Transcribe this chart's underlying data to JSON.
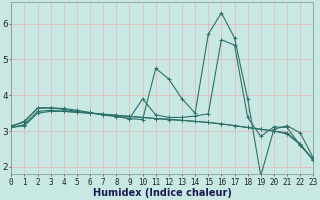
{
  "xlabel": "Humidex (Indice chaleur)",
  "bg_color": "#c8e8e4",
  "grid_color": "#e8b4b4",
  "line_color": "#2d7068",
  "x": [
    0,
    1,
    2,
    3,
    4,
    5,
    6,
    7,
    8,
    9,
    10,
    11,
    12,
    13,
    14,
    15,
    16,
    17,
    18,
    19,
    20,
    21,
    22,
    23
  ],
  "line1": [
    3.15,
    3.25,
    3.65,
    3.65,
    3.63,
    3.58,
    3.52,
    3.45,
    3.4,
    3.35,
    3.32,
    4.75,
    4.45,
    3.9,
    3.5,
    5.7,
    6.3,
    5.6,
    3.9,
    1.75,
    3.05,
    3.15,
    2.95,
    2.25
  ],
  "line2": [
    3.12,
    3.28,
    3.63,
    3.65,
    3.6,
    3.55,
    3.5,
    3.46,
    3.42,
    3.35,
    3.9,
    3.45,
    3.38,
    3.38,
    3.42,
    3.48,
    5.55,
    5.4,
    3.38,
    2.85,
    3.12,
    3.1,
    2.6,
    2.22
  ],
  "line3": [
    3.1,
    3.18,
    3.55,
    3.58,
    3.55,
    3.53,
    3.5,
    3.47,
    3.44,
    3.41,
    3.38,
    3.35,
    3.33,
    3.3,
    3.27,
    3.24,
    3.2,
    3.15,
    3.1,
    3.05,
    3.0,
    2.95,
    2.65,
    2.18
  ],
  "line4": [
    3.1,
    3.15,
    3.5,
    3.55,
    3.55,
    3.52,
    3.5,
    3.47,
    3.44,
    3.41,
    3.38,
    3.35,
    3.32,
    3.3,
    3.27,
    3.24,
    3.2,
    3.15,
    3.1,
    3.05,
    3.0,
    2.92,
    2.62,
    2.18
  ],
  "ylim": [
    1.8,
    6.6
  ],
  "xlim": [
    0,
    23
  ],
  "yticks": [
    2,
    3,
    4,
    5,
    6
  ],
  "xticks": [
    0,
    1,
    2,
    3,
    4,
    5,
    6,
    7,
    8,
    9,
    10,
    11,
    12,
    13,
    14,
    15,
    16,
    17,
    18,
    19,
    20,
    21,
    22,
    23
  ],
  "tick_fontsize": 5.5,
  "xlabel_fontsize": 7.0
}
